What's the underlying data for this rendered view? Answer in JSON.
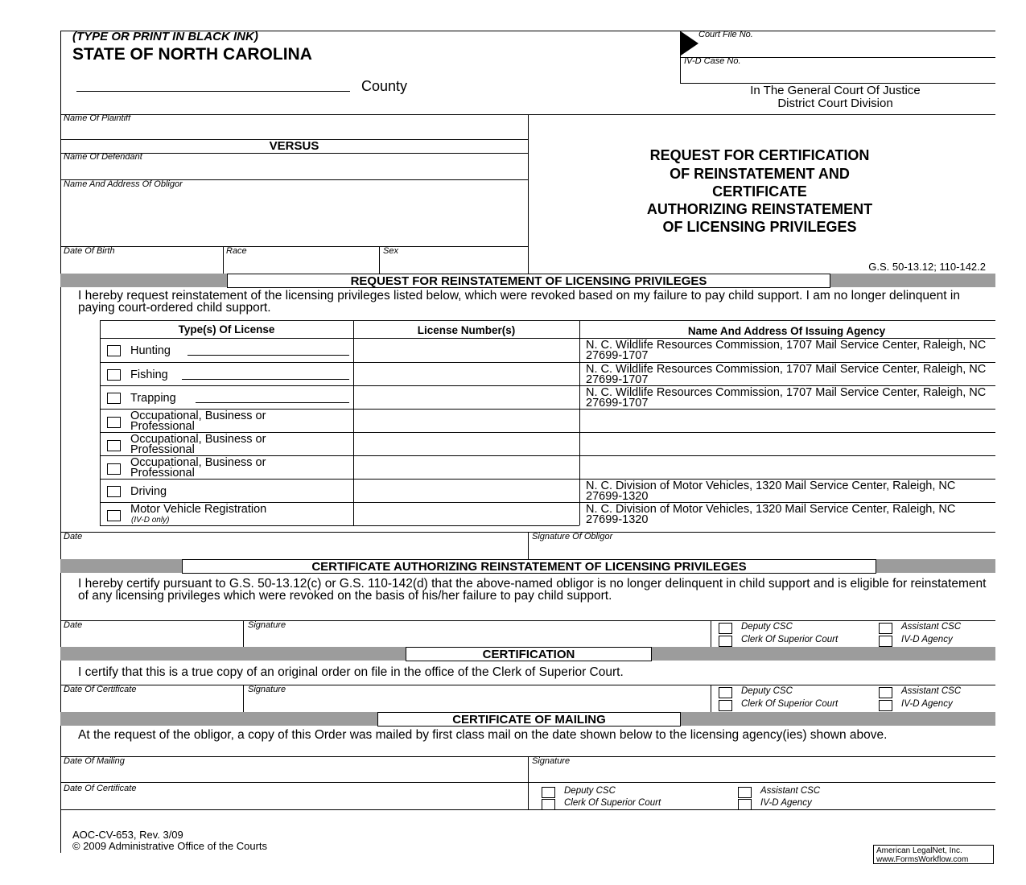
{
  "header": {
    "instruction": "(TYPE OR PRINT IN BLACK INK)",
    "state": "STATE OF NORTH CAROLINA",
    "county_label": "County",
    "court_file_label": "Court File No.",
    "ivd_case_label": "IV-D Case No.",
    "court_line1": "In The General Court Of Justice",
    "court_line2": "District Court Division"
  },
  "parties": {
    "plaintiff_label": "Name Of Plaintiff",
    "versus": "VERSUS",
    "defendant_label": "Name Of Defendant",
    "obligor_label": "Name And Address Of Obligor",
    "dob_label": "Date Of Birth",
    "race_label": "Race",
    "sex_label": "Sex"
  },
  "title": {
    "lines": [
      "REQUEST FOR CERTIFICATION",
      "OF REINSTATEMENT AND",
      "CERTIFICATE",
      "AUTHORIZING REINSTATEMENT",
      "OF LICENSING PRIVILEGES"
    ],
    "statute": "G.S. 50-13.12; 110-142.2"
  },
  "request": {
    "heading": "REQUEST FOR REINSTATEMENT OF LICENSING PRIVILEGES",
    "text": "I hereby request reinstatement of the licensing privileges listed below, which were revoked based on my failure to pay child support.  I am no longer delinquent in paying court-ordered child support.",
    "columns": [
      "Type(s) Of License",
      "License Number(s)",
      "Name And Address Of Issuing Agency"
    ],
    "rows": [
      {
        "type": "Hunting",
        "agency": "N. C. Wildlife Resources Commission, 1707 Mail Service Center, Raleigh, NC 27699-1707"
      },
      {
        "type": "Fishing",
        "agency": "N. C. Wildlife Resources Commission, 1707 Mail Service Center, Raleigh, NC 27699-1707"
      },
      {
        "type": "Trapping",
        "agency": "N. C. Wildlife Resources Commission, 1707 Mail Service Center, Raleigh, NC 27699-1707"
      },
      {
        "type": "Occupational, Business or Professional",
        "agency": ""
      },
      {
        "type": "Occupational, Business or Professional",
        "agency": ""
      },
      {
        "type": "Occupational, Business or Professional",
        "agency": ""
      },
      {
        "type": "Driving",
        "agency": "N. C. Division of Motor Vehicles, 1320  Mail Service Center, Raleigh, NC 27699-1320"
      },
      {
        "type": "Motor Vehicle Registration",
        "note": "(IV-D only)",
        "agency": "N. C. Division of Motor Vehicles, 1320 Mail Service Center, Raleigh, NC 27699-1320"
      }
    ],
    "date_label": "Date",
    "signature_label": "Signature Of Obligor"
  },
  "certificate": {
    "heading": "CERTIFICATE AUTHORIZING REINSTATEMENT OF LICENSING PRIVILEGES",
    "text": "I hereby certify pursuant to G.S. 50-13.12(c) or G.S. 110-142(d) that the above-named obligor is no longer delinquent in child support and is eligible for reinstatement of any licensing privileges which were revoked on the basis of his/her failure to pay child support.",
    "date_label": "Date",
    "signature_label": "Signature"
  },
  "certification": {
    "heading": "CERTIFICATION",
    "text": "I certify that this is a true copy of an original order on file in the office of the Clerk of Superior Court.",
    "date_label": "Date Of Certificate",
    "signature_label": "Signature"
  },
  "mailing": {
    "heading": "CERTIFICATE OF MAILING",
    "text": "At the request of the obligor, a copy of this Order was mailed by first class mail on the date shown below to the licensing agency(ies) shown above.",
    "date_mailing_label": "Date Of Mailing",
    "signature_label": "Signature",
    "date_certificate_label": "Date Of Certificate"
  },
  "roles": {
    "deputy": "Deputy CSC",
    "assistant": "Assistant CSC",
    "clerk": "Clerk Of Superior Court",
    "ivd": "IV-D Agency"
  },
  "footer": {
    "form_id": "AOC-CV-653, Rev. 3/09",
    "copyright": "© 2009 Administrative Office of the Courts",
    "vendor_line1": "American LegalNet, Inc.",
    "vendor_line2": "www.FormsWorkflow.com"
  },
  "colors": {
    "section_bar": "#9c9c9c"
  }
}
